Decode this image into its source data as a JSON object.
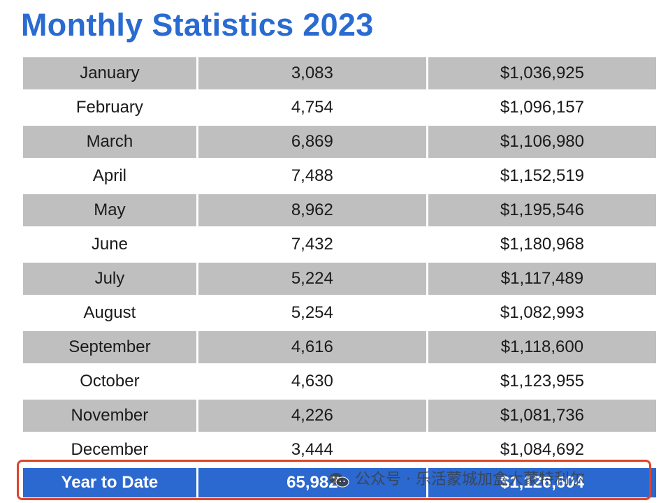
{
  "title": "Monthly Statistics 2023",
  "chart_data": {
    "type": "table",
    "title": "Monthly Statistics 2023",
    "rows": [
      {
        "month": "January",
        "count": "3,083",
        "amount": "$1,036,925"
      },
      {
        "month": "February",
        "count": "4,754",
        "amount": "$1,096,157"
      },
      {
        "month": "March",
        "count": "6,869",
        "amount": "$1,106,980"
      },
      {
        "month": "April",
        "count": "7,488",
        "amount": "$1,152,519"
      },
      {
        "month": "May",
        "count": "8,962",
        "amount": "$1,195,546"
      },
      {
        "month": "June",
        "count": "7,432",
        "amount": "$1,180,968"
      },
      {
        "month": "July",
        "count": "5,224",
        "amount": "$1,117,489"
      },
      {
        "month": "August",
        "count": "5,254",
        "amount": "$1,082,993"
      },
      {
        "month": "September",
        "count": "4,616",
        "amount": "$1,118,600"
      },
      {
        "month": "October",
        "count": "4,630",
        "amount": "$1,123,955"
      },
      {
        "month": "November",
        "count": "4,226",
        "amount": "$1,081,736"
      },
      {
        "month": "December",
        "count": "3,444",
        "amount": "$1,084,692"
      }
    ],
    "total": {
      "label": "Year to Date",
      "count": "65,982",
      "amount": "$1,126,604"
    }
  },
  "colors": {
    "title": "#2a6bd1",
    "shade_row": "#bfbfbf",
    "total_row": "#2b68cf",
    "highlight_border": "#e0442a"
  },
  "watermark": {
    "text": "公众号 · 乐活蒙城加盒大蒙特利尔",
    "icon": "wechat-icon"
  }
}
